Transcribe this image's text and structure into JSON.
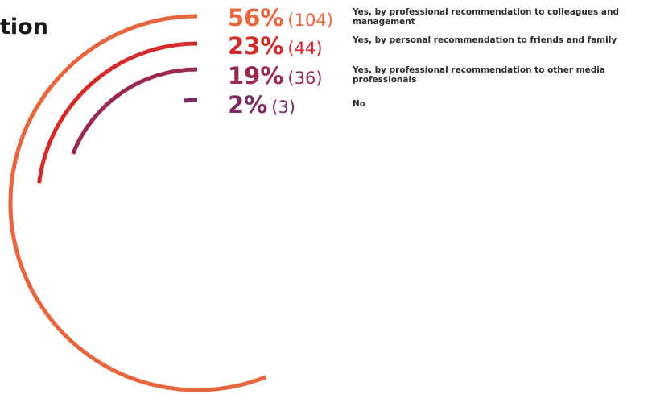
{
  "title": "tion",
  "chart_data": {
    "type": "radial_bar",
    "title": "tion",
    "series": [
      {
        "name": "Yes, by professional recommendation to colleagues and management",
        "percent": 56,
        "count": 104,
        "percent_label": "56%",
        "count_label": "(104)",
        "color": "#e8663f"
      },
      {
        "name": "Yes, by personal recommendation to friends and family",
        "percent": 23,
        "count": 44,
        "percent_label": "23%",
        "count_label": "(44)",
        "color": "#d42a2a"
      },
      {
        "name": "Yes, by professional recommendation to other media professionals",
        "percent": 19,
        "count": 36,
        "percent_label": "19%",
        "count_label": "(36)",
        "color": "#992a4c"
      },
      {
        "name": "No",
        "percent": 2,
        "count": 3,
        "percent_label": "2%",
        "count_label": "(3)",
        "color": "#7a2d63"
      }
    ]
  }
}
